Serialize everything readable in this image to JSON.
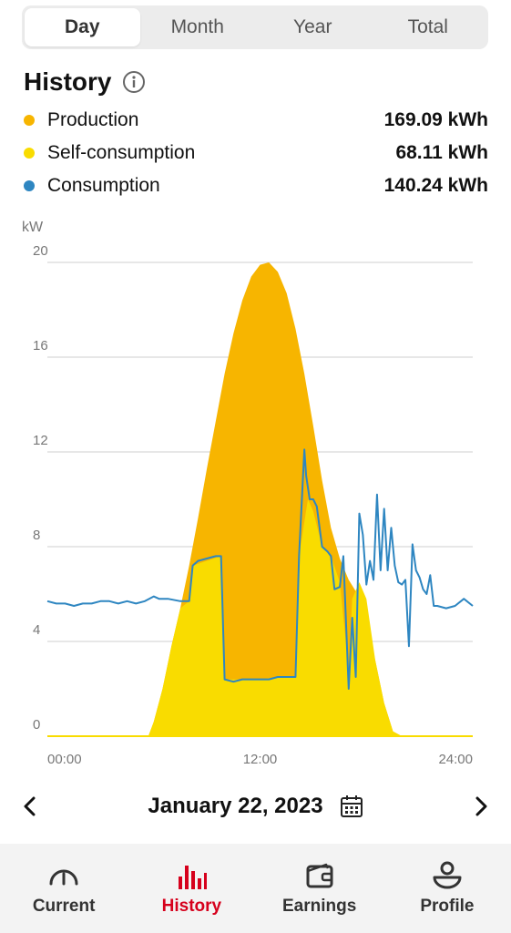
{
  "tabs": [
    {
      "label": "Day",
      "active": true
    },
    {
      "label": "Month",
      "active": false
    },
    {
      "label": "Year",
      "active": false
    },
    {
      "label": "Total",
      "active": false
    }
  ],
  "history": {
    "title": "History",
    "info_icon": "info-circle-icon"
  },
  "legend": [
    {
      "label": "Production",
      "value": "169.09 kWh",
      "color": "#f7b500"
    },
    {
      "label": "Self-consumption",
      "value": "68.11 kWh",
      "color": "#f9dc00"
    },
    {
      "label": "Consumption",
      "value": "140.24 kWh",
      "color": "#2e86c1"
    }
  ],
  "chart_data": {
    "type": "area",
    "ylabel": "kW",
    "ylim": [
      0,
      20
    ],
    "y_ticks": [
      "0",
      "4",
      "8",
      "12",
      "16",
      "20"
    ],
    "x_ticks": [
      "00:00",
      "12:00",
      "24:00"
    ],
    "xlim": [
      0,
      24
    ],
    "grid": true,
    "series": [
      {
        "name": "Production",
        "color": "#f7b500",
        "x": [
          0,
          5.7,
          6.0,
          6.5,
          7.0,
          7.5,
          8.0,
          8.5,
          9.0,
          9.5,
          10.0,
          10.5,
          11.0,
          11.5,
          12.0,
          12.5,
          13.0,
          13.5,
          14.0,
          14.5,
          15.0,
          15.5,
          16.0,
          16.5,
          17.0,
          17.5,
          18.0,
          18.5,
          19.0,
          19.5,
          20.0,
          24
        ],
        "values": [
          0,
          0,
          0.6,
          2.0,
          3.8,
          5.4,
          7.2,
          9.2,
          11.3,
          13.3,
          15.3,
          17.0,
          18.4,
          19.4,
          19.9,
          20.0,
          19.6,
          18.7,
          17.2,
          15.3,
          13.1,
          10.8,
          8.8,
          7.5,
          6.6,
          6.0,
          5.0,
          3.2,
          1.4,
          0.2,
          0,
          0
        ]
      },
      {
        "name": "Self-consumption",
        "color": "#f9dc00",
        "x": [
          0,
          5.7,
          6.0,
          6.5,
          7.0,
          7.5,
          8.0,
          8.2,
          9.8,
          10.0,
          11.0,
          12.0,
          13.0,
          14.0,
          14.2,
          14.7,
          15.0,
          15.5,
          16.0,
          16.5,
          17.0,
          17.2,
          17.6,
          18.0,
          18.5,
          19.0,
          19.5,
          20.0,
          24
        ],
        "values": [
          0,
          0,
          0.6,
          2.0,
          3.8,
          5.4,
          5.7,
          7.2,
          7.6,
          2.4,
          2.4,
          2.4,
          2.5,
          2.5,
          7.6,
          10.0,
          9.5,
          8.0,
          7.6,
          6.5,
          2.8,
          5.8,
          6.5,
          5.8,
          3.2,
          1.4,
          0.2,
          0,
          0
        ]
      },
      {
        "name": "Consumption",
        "color": "#2e86c1",
        "x": [
          0,
          0.5,
          1,
          1.5,
          2,
          2.5,
          3,
          3.5,
          4,
          4.5,
          5,
          5.5,
          6,
          6.3,
          6.8,
          7.5,
          8.0,
          8.2,
          8.5,
          9.0,
          9.5,
          9.8,
          10.0,
          10.5,
          11,
          11.5,
          12,
          12.5,
          13,
          13.5,
          14.0,
          14.2,
          14.5,
          14.6,
          14.8,
          15.0,
          15.2,
          15.5,
          15.8,
          16.0,
          16.2,
          16.5,
          16.7,
          17.0,
          17.2,
          17.4,
          17.6,
          17.8,
          18.0,
          18.2,
          18.4,
          18.6,
          18.8,
          19.0,
          19.2,
          19.4,
          19.6,
          19.8,
          20.0,
          20.2,
          20.4,
          20.6,
          20.8,
          21.0,
          21.2,
          21.4,
          21.6,
          21.8,
          22.0,
          22.5,
          23.0,
          23.5,
          24
        ],
        "values": [
          5.7,
          5.6,
          5.6,
          5.5,
          5.6,
          5.6,
          5.7,
          5.7,
          5.6,
          5.7,
          5.6,
          5.7,
          5.9,
          5.8,
          5.8,
          5.7,
          5.7,
          7.2,
          7.4,
          7.5,
          7.6,
          7.6,
          2.4,
          2.3,
          2.4,
          2.4,
          2.4,
          2.4,
          2.5,
          2.5,
          2.5,
          7.6,
          12.1,
          11.0,
          10.0,
          10.0,
          9.7,
          8.0,
          7.8,
          7.6,
          6.2,
          6.3,
          7.6,
          2.0,
          5.0,
          2.5,
          9.4,
          8.5,
          6.4,
          7.4,
          6.6,
          10.2,
          7.0,
          9.6,
          7.0,
          8.8,
          7.2,
          6.5,
          6.4,
          6.6,
          3.8,
          8.1,
          7.0,
          6.7,
          6.2,
          6.0,
          6.8,
          5.5,
          5.5,
          5.4,
          5.5,
          5.8,
          5.5
        ]
      }
    ]
  },
  "date_nav": {
    "date": "January 22, 2023",
    "prev_icon": "chevron-left-icon",
    "next_icon": "chevron-right-icon",
    "calendar_icon": "calendar-icon"
  },
  "bottom_nav": [
    {
      "label": "Current",
      "icon": "gauge-icon",
      "active": false
    },
    {
      "label": "History",
      "icon": "bar-chart-icon",
      "active": true,
      "color": "#d6001c"
    },
    {
      "label": "Earnings",
      "icon": "wallet-icon",
      "active": false
    },
    {
      "label": "Profile",
      "icon": "profile-icon",
      "active": false
    }
  ]
}
